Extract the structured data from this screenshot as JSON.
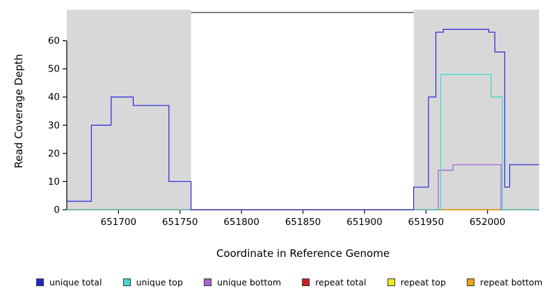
{
  "chart_data": {
    "type": "line",
    "title": "",
    "xlabel": "Coordinate in Reference Genome",
    "ylabel": "Read Coverage Depth",
    "xlim": [
      651658,
      652042
    ],
    "ylim": [
      0,
      70
    ],
    "x_ticks": [
      651700,
      651750,
      651800,
      651850,
      651900,
      651950,
      652000
    ],
    "y_ticks": [
      0,
      10,
      20,
      30,
      40,
      50,
      60
    ],
    "grid": false,
    "legend_position": "bottom",
    "axis_color": "#000000",
    "top_border": {
      "x0": 651759,
      "x1": 651940,
      "color": "#555555"
    },
    "shaded_regions": [
      {
        "x0": 651658,
        "x1": 651759,
        "color": "#d8d8d8"
      },
      {
        "x0": 651940,
        "x1": 652042,
        "color": "#d8d8d8"
      }
    ],
    "series": [
      {
        "name": "repeat total",
        "color": "#cc2222",
        "step_points": [
          [
            651658,
            0
          ]
        ]
      },
      {
        "name": "repeat top",
        "color": "#eded1a",
        "step_points": [
          [
            651658,
            0
          ]
        ]
      },
      {
        "name": "repeat bottom",
        "color": "#eda018",
        "step_points": [
          [
            651658,
            0
          ]
        ]
      },
      {
        "name": "unique bottom",
        "color": "#a963d6",
        "step_points": [
          [
            651658,
            0
          ],
          [
            651960,
            14
          ],
          [
            651972,
            16
          ],
          [
            652011,
            0
          ]
        ]
      },
      {
        "name": "unique top",
        "color": "#45d6d6",
        "step_points": [
          [
            651658,
            0
          ],
          [
            651962,
            48
          ],
          [
            652003,
            40
          ],
          [
            652012,
            0
          ]
        ]
      },
      {
        "name": "unique total",
        "color": "#3434d6",
        "step_points": [
          [
            651658,
            3
          ],
          [
            651678,
            30
          ],
          [
            651694,
            40
          ],
          [
            651712,
            37
          ],
          [
            651741,
            10
          ],
          [
            651759,
            0
          ],
          [
            651940,
            8
          ],
          [
            651952,
            40
          ],
          [
            651958,
            63
          ],
          [
            651964,
            64
          ],
          [
            652001,
            63
          ],
          [
            652006,
            56
          ],
          [
            652014,
            8
          ],
          [
            652018,
            16
          ]
        ]
      }
    ],
    "legend": [
      {
        "label": "unique total",
        "color": "#2424cc"
      },
      {
        "label": "unique top",
        "color": "#45d6d6"
      },
      {
        "label": "unique bottom",
        "color": "#a963d6"
      },
      {
        "label": "repeat total",
        "color": "#cc2222"
      },
      {
        "label": "repeat top",
        "color": "#eded1a"
      },
      {
        "label": "repeat bottom",
        "color": "#eda018"
      }
    ]
  }
}
